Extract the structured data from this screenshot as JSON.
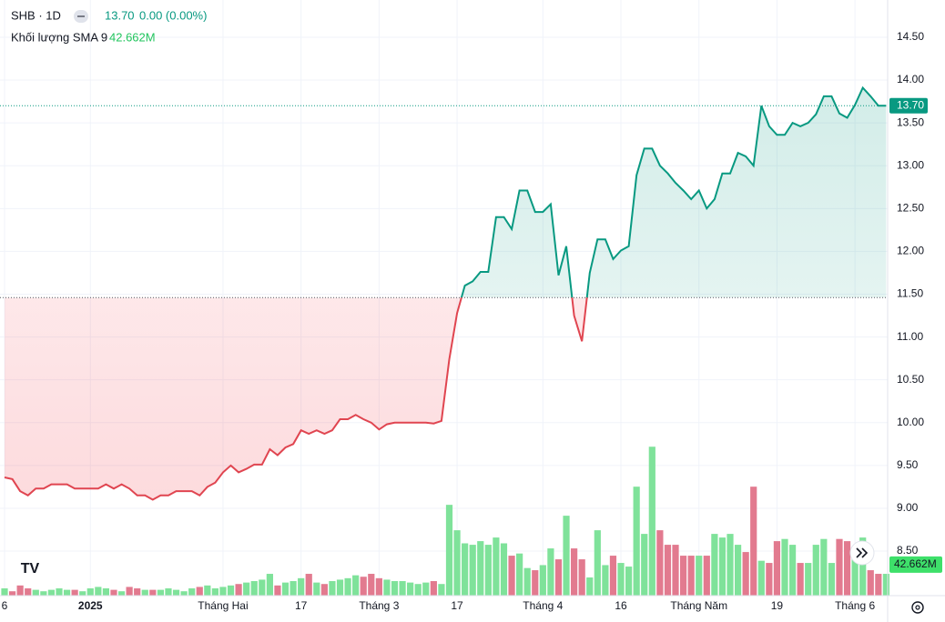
{
  "chart_data": {
    "type": "baseline",
    "header": {
      "symbol": "SHB · 1D",
      "change": "0.00 (0.00%)",
      "volume_title": "Khối lượng SMA 9"
    },
    "categories": [
      "6",
      null,
      null,
      null,
      null,
      null,
      null,
      null,
      null,
      null,
      null,
      "2025",
      null,
      null,
      null,
      null,
      null,
      null,
      null,
      null,
      null,
      null,
      null,
      null,
      null,
      null,
      null,
      null,
      "Tháng Hai",
      null,
      null,
      null,
      null,
      null,
      null,
      null,
      null,
      null,
      "17",
      null,
      null,
      null,
      null,
      null,
      null,
      null,
      null,
      null,
      "Tháng 3",
      null,
      null,
      null,
      null,
      null,
      null,
      null,
      null,
      null,
      "17",
      null,
      null,
      null,
      null,
      null,
      null,
      null,
      null,
      null,
      null,
      "Tháng 4",
      null,
      null,
      null,
      null,
      null,
      null,
      null,
      null,
      null,
      "16",
      null,
      null,
      null,
      null,
      null,
      null,
      null,
      null,
      null,
      "Tháng Năm",
      null,
      null,
      null,
      null,
      null,
      null,
      null,
      null,
      null,
      "19",
      null,
      null,
      null,
      null,
      null,
      null,
      null,
      null,
      null,
      "Tháng 6",
      null,
      null,
      null,
      null
    ],
    "price": {
      "up_color": "#089981",
      "down_color": "#e04550",
      "values": [
        9.36,
        9.34,
        9.2,
        9.15,
        9.23,
        9.23,
        9.28,
        9.28,
        9.28,
        9.23,
        9.23,
        9.23,
        9.23,
        9.28,
        9.23,
        9.28,
        9.23,
        9.15,
        9.15,
        9.1,
        9.15,
        9.15,
        9.2,
        9.2,
        9.2,
        9.15,
        9.25,
        9.3,
        9.42,
        9.5,
        9.42,
        9.46,
        9.51,
        9.51,
        9.69,
        9.62,
        9.71,
        9.75,
        9.91,
        9.87,
        9.91,
        9.87,
        9.91,
        10.04,
        10.04,
        10.09,
        10.04,
        10.0,
        9.92,
        9.98,
        10.0,
        10.0,
        10.0,
        10.0,
        10.0,
        9.99,
        10.02,
        10.74,
        11.28,
        11.6,
        11.65,
        11.76,
        11.76,
        12.4,
        12.4,
        12.26,
        12.71,
        12.71,
        12.46,
        12.46,
        12.55,
        11.72,
        12.06,
        11.25,
        10.95,
        11.75,
        12.14,
        12.14,
        11.91,
        12.01,
        12.06,
        12.89,
        13.2,
        13.2,
        13.0,
        12.91,
        12.8,
        12.71,
        12.61,
        12.71,
        12.5,
        12.61,
        12.91,
        12.91,
        13.15,
        13.11,
        13.0,
        13.7,
        13.46,
        13.36,
        13.36,
        13.5,
        13.46,
        13.5,
        13.6,
        13.81,
        13.81,
        13.61,
        13.56,
        13.71,
        13.91,
        13.81,
        13.7,
        13.7
      ]
    },
    "baseline": 11.46,
    "last_price": {
      "value": 13.7,
      "label": "13.70"
    },
    "volume": {
      "up_color": "#7fe29a",
      "down_color": "#e27a8f",
      "ylim": [
        0,
        820
      ],
      "values": [
        10,
        6,
        14,
        10,
        8,
        6,
        8,
        10,
        8,
        8,
        6,
        10,
        12,
        10,
        8,
        6,
        12,
        10,
        8,
        8,
        8,
        10,
        8,
        6,
        10,
        12,
        14,
        10,
        12,
        14,
        16,
        18,
        20,
        22,
        30,
        14,
        18,
        20,
        24,
        30,
        18,
        16,
        20,
        22,
        24,
        28,
        26,
        30,
        24,
        22,
        20,
        20,
        18,
        16,
        18,
        20,
        16,
        125,
        90,
        72,
        70,
        75,
        70,
        80,
        72,
        55,
        58,
        38,
        35,
        42,
        65,
        50,
        110,
        65,
        50,
        25,
        90,
        42,
        55,
        45,
        40,
        150,
        85,
        205,
        90,
        70,
        70,
        55,
        55,
        55,
        55,
        85,
        80,
        85,
        70,
        60,
        150,
        48,
        45,
        75,
        78,
        70,
        45,
        45,
        70,
        78,
        45,
        78,
        75,
        60,
        80,
        35,
        30,
        30
      ]
    },
    "volume_sma": {
      "value": 42.662,
      "label": "42.662M"
    },
    "ylim": [
      7.98,
      14.935
    ],
    "yticks": [
      {
        "value": 8.5,
        "label": "8.50"
      },
      {
        "value": 9,
        "label": "9.00"
      },
      {
        "value": 9.5,
        "label": "9.50"
      },
      {
        "value": 10,
        "label": "10.00"
      },
      {
        "value": 10.5,
        "label": "10.50"
      },
      {
        "value": 11,
        "label": "11.00"
      },
      {
        "value": 11.5,
        "label": "11.50"
      },
      {
        "value": 12,
        "label": "12.00"
      },
      {
        "value": 12.5,
        "label": "12.50"
      },
      {
        "value": 13,
        "label": "13.00"
      },
      {
        "value": 13.5,
        "label": "13.50"
      },
      {
        "value": 14,
        "label": "14.00"
      },
      {
        "value": 14.5,
        "label": "14.50"
      }
    ],
    "grid": true
  }
}
